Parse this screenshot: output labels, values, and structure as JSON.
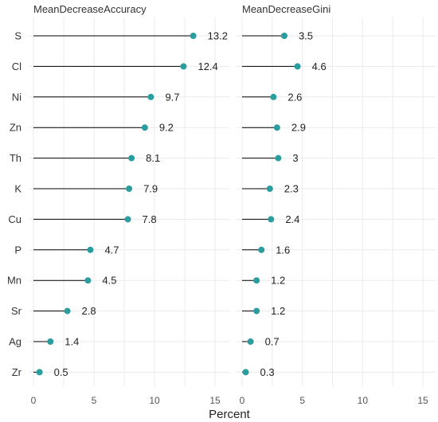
{
  "chart_data": {
    "type": "lollipop",
    "xlabel": "Percent",
    "xlim": [
      0,
      15
    ],
    "xticks": [
      0,
      5,
      10,
      15
    ],
    "grid": true,
    "point_color": "#2a9d9e",
    "categories": [
      "S",
      "Cl",
      "Ni",
      "Zn",
      "Th",
      "K",
      "Cu",
      "P",
      "Mn",
      "Sr",
      "Ag",
      "Zr"
    ],
    "panels": [
      {
        "title": "MeanDecreaseAccuracy",
        "values": [
          13.2,
          12.4,
          9.7,
          9.2,
          8.1,
          7.9,
          7.8,
          4.7,
          4.5,
          2.8,
          1.4,
          0.5
        ]
      },
      {
        "title": "MeanDecreaseGini",
        "values": [
          3.5,
          4.6,
          2.6,
          2.9,
          3,
          2.3,
          2.4,
          1.6,
          1.2,
          1.2,
          0.7,
          0.3
        ]
      }
    ]
  }
}
